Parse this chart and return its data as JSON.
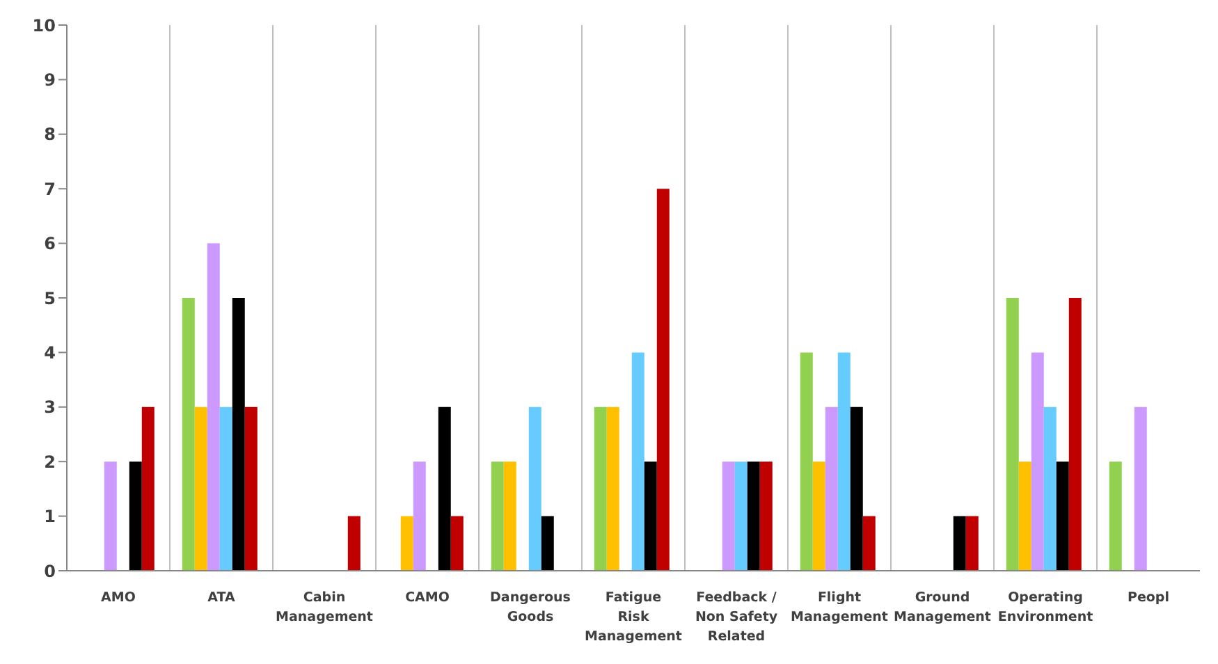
{
  "chart_data": {
    "type": "bar",
    "categories": [
      "AMO",
      "ATA",
      "Cabin Management",
      "CAMO",
      "Dangerous Goods",
      "Fatigue Risk Management",
      "Feedback / Non Safety Related",
      "Flight Management",
      "Ground Management",
      "Operating Environment",
      "Peopl"
    ],
    "series": [
      {
        "color": "#92d050",
        "values": [
          0,
          5,
          0,
          0,
          2,
          3,
          0,
          4,
          0,
          5,
          2
        ]
      },
      {
        "color": "#ffc000",
        "values": [
          0,
          3,
          0,
          1,
          2,
          3,
          0,
          2,
          0,
          2,
          0
        ]
      },
      {
        "color": "#cc99ff",
        "values": [
          2,
          6,
          0,
          2,
          0,
          0,
          2,
          3,
          0,
          4,
          3
        ]
      },
      {
        "color": "#66ccff",
        "values": [
          0,
          3,
          0,
          0,
          3,
          4,
          2,
          4,
          0,
          3,
          null
        ]
      },
      {
        "color": "#000000",
        "values": [
          2,
          5,
          0,
          3,
          1,
          2,
          2,
          3,
          1,
          2,
          null
        ]
      },
      {
        "color": "#c00000",
        "values": [
          3,
          3,
          1,
          1,
          0,
          7,
          2,
          1,
          1,
          5,
          null
        ]
      }
    ],
    "ylim": [
      0,
      10
    ],
    "yticks": [
      0,
      1,
      2,
      3,
      4,
      5,
      6,
      7,
      8,
      9,
      10
    ],
    "grid": "x"
  }
}
